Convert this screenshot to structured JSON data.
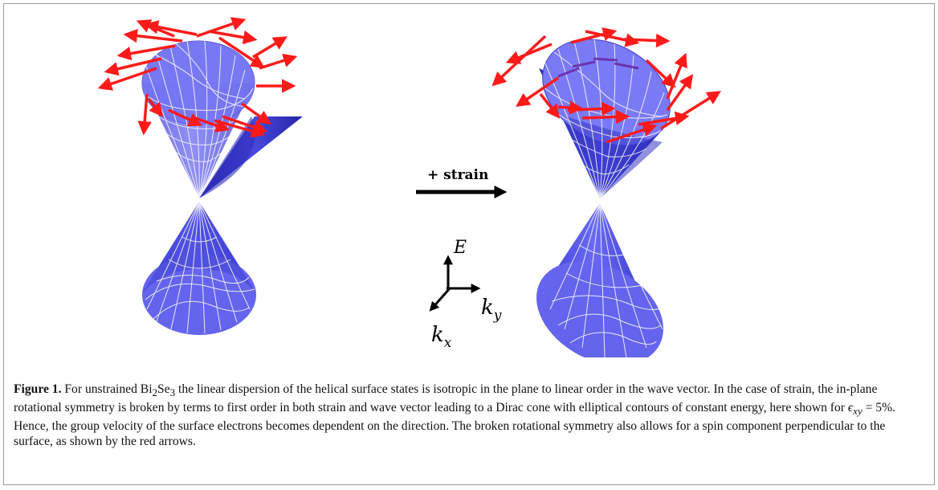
{
  "figure": {
    "strain_label": "+ strain",
    "axes": {
      "e_label": "E",
      "ky_label": "k",
      "ky_sub": "y",
      "kx_label": "k",
      "kx_sub": "x"
    },
    "colors": {
      "cone_fill": "#5b5bef",
      "cone_dark": "#2a2ab8",
      "grid_line": "#ffffff",
      "spin_arrow": "#ff1a1a",
      "strain_arrow": "#000000",
      "border": "#9a9a9a"
    }
  },
  "caption": {
    "label": "Figure 1.",
    "text_1": " For unstrained Bi",
    "sub_2a": "2",
    "text_2": "Se",
    "sub_3": "3",
    "text_3": " the linear dispersion of the helical surface states is isotropic in the plane to linear order in the wave vector. In the case of strain, the in-plane rotational symmetry is broken by terms to first order in both strain and wave vector leading to a Dirac cone with elliptical contours of constant energy, here shown for ",
    "eps_symbol": "ϵ",
    "eps_sub": "xy",
    "eps_value": " = 5%",
    "text_4": ". Hence, the group velocity of the surface electrons becomes dependent on the direction. The broken rotational symmetry also allows for a spin component perpendicular to the surface, as shown by the red arrows."
  }
}
